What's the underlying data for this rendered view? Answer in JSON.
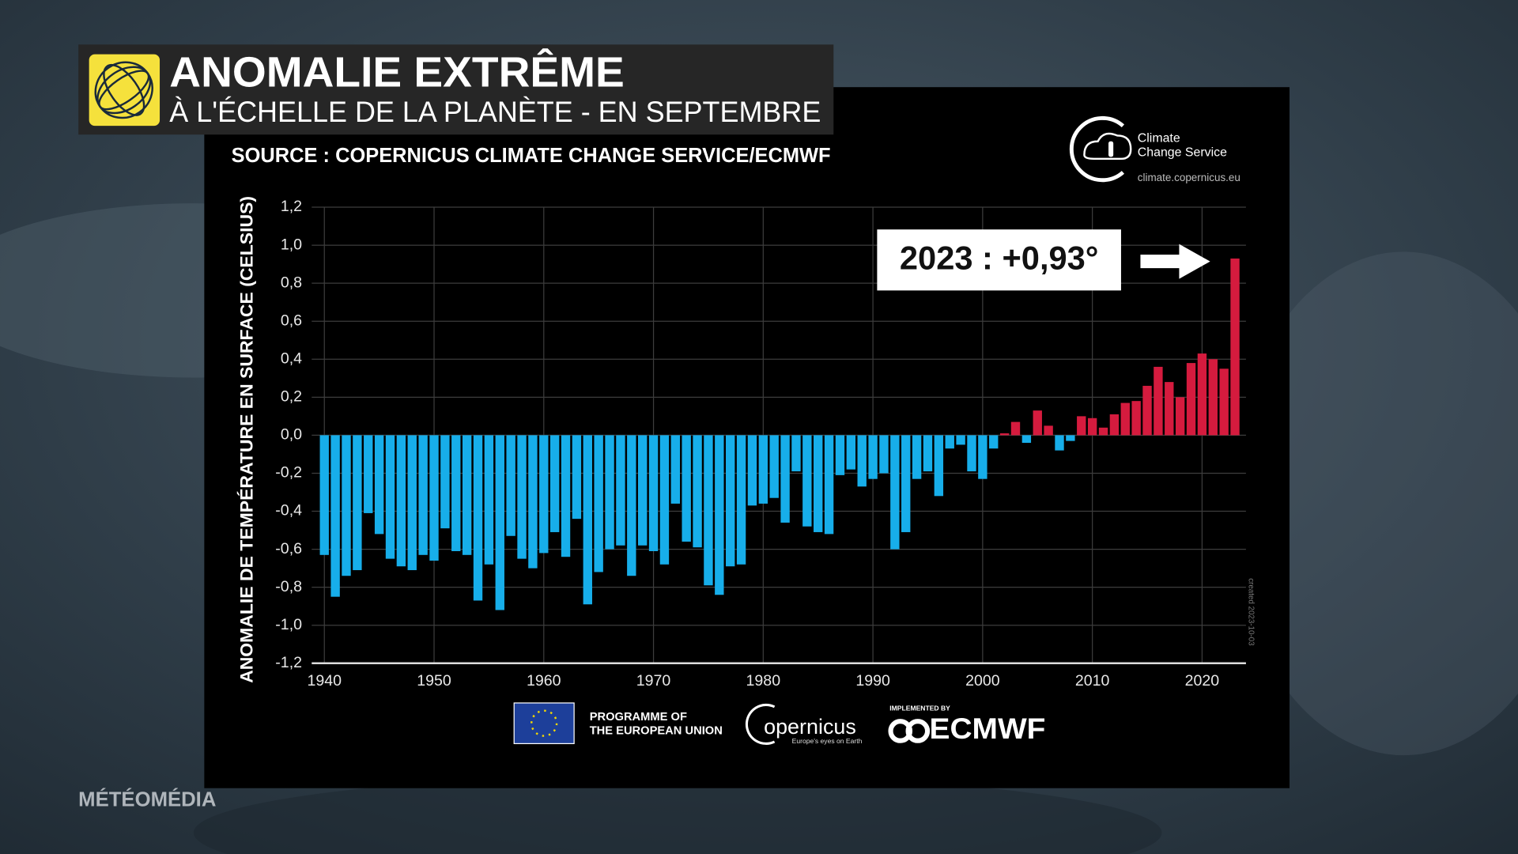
{
  "chart_data": {
    "type": "bar",
    "title": "ANOMALIE EXTRÊME",
    "subtitle": "À L'ÉCHELLE DE LA PLANÈTE - EN SEPTEMBRE",
    "source": "SOURCE : COPERNICUS CLIMATE CHANGE SERVICE/ECMWF",
    "y_label": "ANOMALIE DE TEMPÉRATURE EN SURFACE (CELSIUS)",
    "annotation": "2023 : +0,93°",
    "x": [
      1940,
      1941,
      1942,
      1943,
      1944,
      1945,
      1946,
      1947,
      1948,
      1949,
      1950,
      1951,
      1952,
      1953,
      1954,
      1955,
      1956,
      1957,
      1958,
      1959,
      1960,
      1961,
      1962,
      1963,
      1964,
      1965,
      1966,
      1967,
      1968,
      1969,
      1970,
      1971,
      1972,
      1973,
      1974,
      1975,
      1976,
      1977,
      1978,
      1979,
      1980,
      1981,
      1982,
      1983,
      1984,
      1985,
      1986,
      1987,
      1988,
      1989,
      1990,
      1991,
      1992,
      1993,
      1994,
      1995,
      1996,
      1997,
      1998,
      1999,
      2000,
      2001,
      2002,
      2003,
      2004,
      2005,
      2006,
      2007,
      2008,
      2009,
      2010,
      2011,
      2012,
      2013,
      2014,
      2015,
      2016,
      2017,
      2018,
      2019,
      2020,
      2021,
      2022,
      2023
    ],
    "values": [
      -0.63,
      -0.85,
      -0.74,
      -0.71,
      -0.41,
      -0.52,
      -0.65,
      -0.69,
      -0.71,
      -0.63,
      -0.66,
      -0.49,
      -0.61,
      -0.63,
      -0.87,
      -0.68,
      -0.92,
      -0.53,
      -0.65,
      -0.7,
      -0.62,
      -0.51,
      -0.64,
      -0.44,
      -0.89,
      -0.72,
      -0.6,
      -0.58,
      -0.74,
      -0.58,
      -0.61,
      -0.68,
      -0.36,
      -0.56,
      -0.59,
      -0.79,
      -0.84,
      -0.69,
      -0.68,
      -0.37,
      -0.36,
      -0.33,
      -0.46,
      -0.19,
      -0.48,
      -0.51,
      -0.52,
      -0.21,
      -0.18,
      -0.27,
      -0.23,
      -0.2,
      -0.6,
      -0.51,
      -0.23,
      -0.19,
      -0.32,
      -0.07,
      -0.05,
      -0.19,
      -0.23,
      -0.07,
      0.01,
      0.07,
      -0.04,
      0.13,
      0.05,
      -0.08,
      -0.03,
      0.1,
      0.09,
      0.04,
      0.11,
      0.17,
      0.18,
      0.26,
      0.36,
      0.28,
      0.2,
      0.38,
      0.43,
      0.4,
      0.35,
      0.93
    ],
    "negative_color": "#17aeea",
    "positive_color": "#d51b3e",
    "xlim": [
      1938.85,
      2024
    ],
    "xticks": [
      1940,
      1950,
      1960,
      1970,
      1980,
      1990,
      2000,
      2010,
      2020
    ],
    "ylim": [
      -1.2,
      1.2
    ],
    "yticks": [
      {
        "value": -1.2,
        "label": "-1,2"
      },
      {
        "value": -1.0,
        "label": "-1,0"
      },
      {
        "value": -0.8,
        "label": "-0,8"
      },
      {
        "value": -0.6,
        "label": "-0,6"
      },
      {
        "value": -0.4,
        "label": "-0,4"
      },
      {
        "value": -0.2,
        "label": "-0,2"
      },
      {
        "value": 0,
        "label": "0,0"
      },
      {
        "value": 0.2,
        "label": "0,2"
      },
      {
        "value": 0.4,
        "label": "0,4"
      },
      {
        "value": 0.6,
        "label": "0,6"
      },
      {
        "value": 0.8,
        "label": "0,8"
      },
      {
        "value": 1.0,
        "label": "1,0"
      },
      {
        "value": 1.2,
        "label": "1,2"
      }
    ],
    "grid": true
  },
  "logos": {
    "c3s_line1": "Climate",
    "c3s_line2": "Change Service",
    "c3s_url": "climate.copernicus.eu",
    "eu_line1": "PROGRAMME OF",
    "eu_line2": "THE EUROPEAN UNION",
    "copernicus": "opernicus",
    "copernicus_tagline": "Europe's eyes on Earth",
    "ecmwf_pre": "IMPLEMENTED BY",
    "ecmwf": "ECMWF",
    "created": "created 2023-10-03"
  },
  "brand": "MÉTÉOMÉDIA"
}
